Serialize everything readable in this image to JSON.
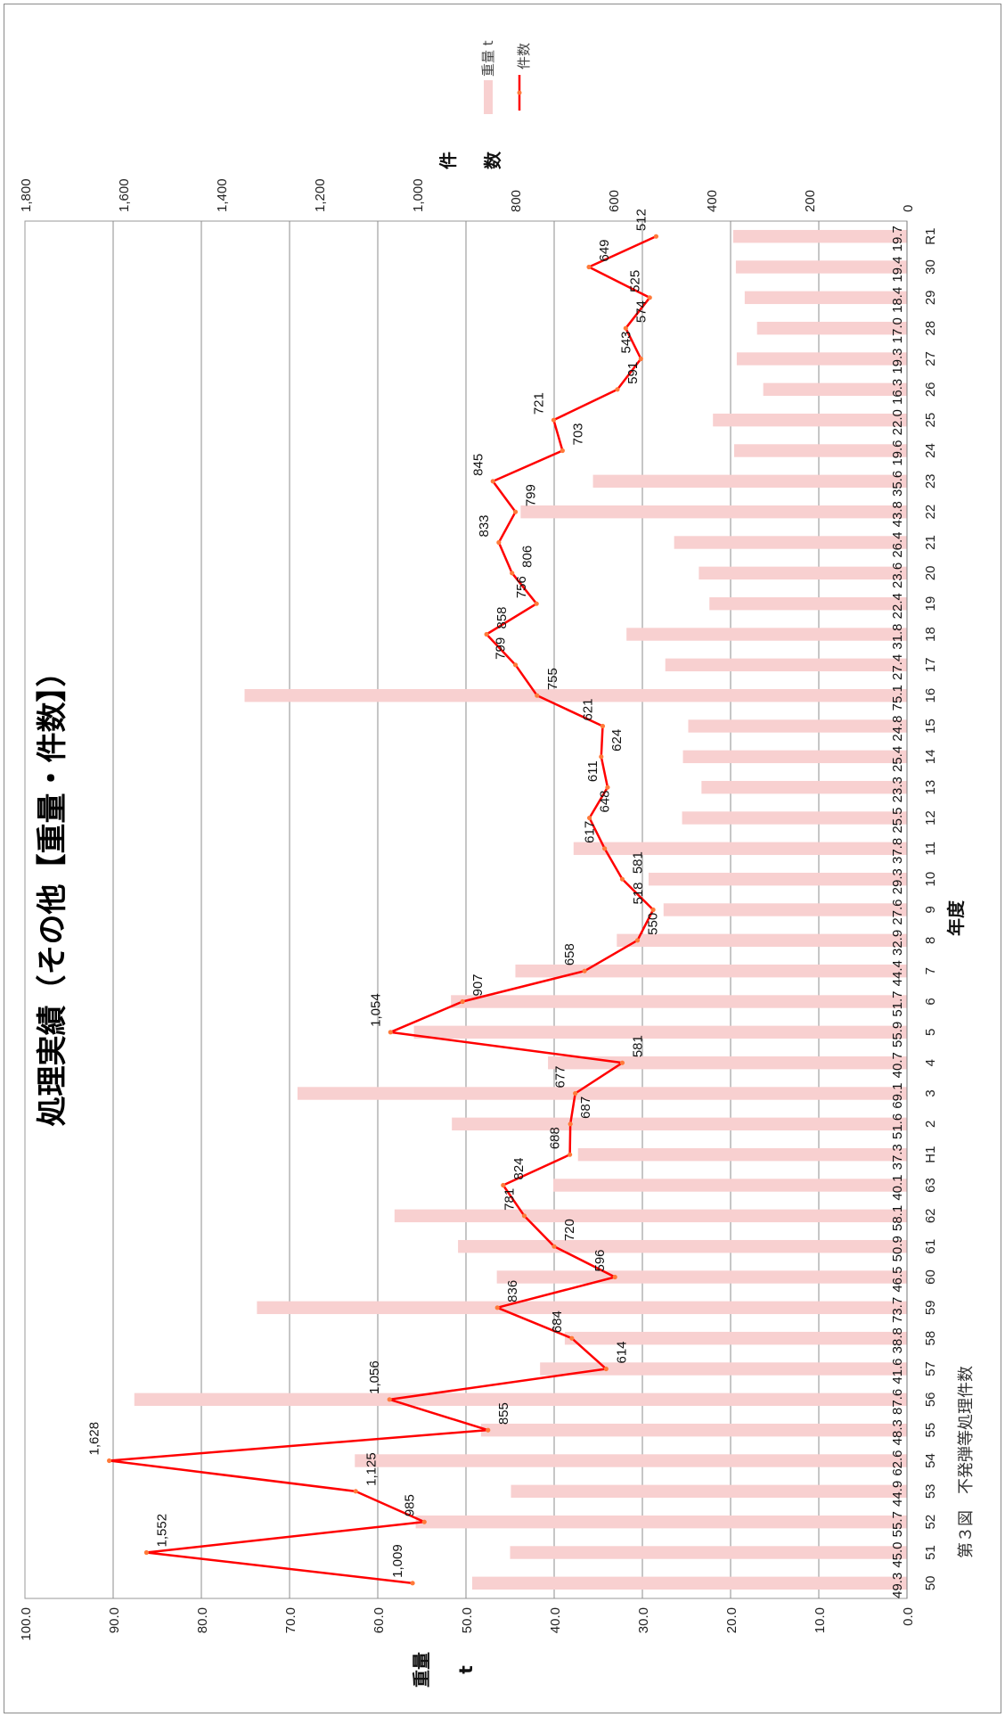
{
  "caption": "第３図　不発弾等処理件数",
  "chart_data": {
    "type": "bar",
    "title": "処理実績（その他【重量・件数】）",
    "xlabel": "年度",
    "ylabel": "重量",
    "ylabel_unit": "t",
    "y2label_1": "件",
    "y2label_2": "数",
    "ylim": [
      0,
      100
    ],
    "y2lim": [
      0,
      1800
    ],
    "y_ticks": [
      "0.0",
      "10.0",
      "20.0",
      "30.0",
      "40.0",
      "50.0",
      "60.0",
      "70.0",
      "80.0",
      "90.0",
      "100.0"
    ],
    "y2_ticks": [
      "0",
      "200",
      "400",
      "600",
      "800",
      "1,000",
      "1,200",
      "1,400",
      "1,600",
      "1,800"
    ],
    "grid": true,
    "legend_position": "top-right",
    "categories": [
      "50",
      "51",
      "52",
      "53",
      "54",
      "55",
      "56",
      "57",
      "58",
      "59",
      "60",
      "61",
      "62",
      "63",
      "H1",
      "2",
      "3",
      "4",
      "5",
      "6",
      "7",
      "8",
      "9",
      "10",
      "11",
      "12",
      "13",
      "14",
      "15",
      "16",
      "17",
      "18",
      "19",
      "20",
      "21",
      "22",
      "23",
      "24",
      "25",
      "26",
      "27",
      "28",
      "29",
      "30",
      "R1"
    ],
    "series": [
      {
        "name": "重量 t",
        "type": "bar",
        "color": "#f8d0d0",
        "values": [
          49.3,
          45.0,
          55.7,
          44.9,
          62.6,
          48.3,
          87.6,
          41.6,
          38.8,
          73.7,
          46.5,
          50.9,
          58.1,
          40.1,
          37.3,
          51.6,
          69.1,
          40.7,
          55.9,
          51.7,
          44.4,
          32.9,
          27.6,
          29.3,
          37.8,
          25.5,
          23.3,
          25.4,
          24.8,
          75.1,
          27.4,
          31.8,
          22.4,
          23.6,
          26.4,
          43.8,
          35.6,
          19.6,
          22.0,
          16.3,
          19.3,
          17.0,
          18.4,
          19.4,
          19.7
        ],
        "labels": [
          "49.3",
          "45.0",
          "55.7",
          "44.9",
          "62.6",
          "48.3",
          "87.6",
          "41.6",
          "38.8",
          "73.7",
          "46.5",
          "50.9",
          "58.1",
          "40.1",
          "37.3",
          "51.6",
          "69.1",
          "40.7",
          "55.9",
          "51.7",
          "44.4",
          "32.9",
          "27.6",
          "29.3",
          "37.8",
          "25.5",
          "23.3",
          "25.4",
          "24.8",
          "75.1",
          "27.4",
          "31.8",
          "22.4",
          "23.6",
          "26.4",
          "43.8",
          "35.6",
          "19.6",
          "22.0",
          "16.3",
          "19.3",
          "17.0",
          "18.4",
          "19.4",
          "19.7"
        ]
      },
      {
        "name": "件数",
        "type": "line",
        "color": "#ff0000",
        "values": [
          1009,
          1552,
          985,
          1125,
          1628,
          855,
          1056,
          614,
          684,
          836,
          596,
          720,
          781,
          824,
          688,
          687,
          677,
          581,
          1054,
          907,
          658,
          550,
          518,
          581,
          617,
          648,
          611,
          624,
          621,
          755,
          799,
          858,
          756,
          806,
          833,
          799,
          845,
          703,
          721,
          591,
          543,
          574,
          525,
          649,
          512
        ],
        "labels": [
          "1,009",
          "1,552",
          "985",
          "1,125",
          "1,628",
          "855",
          "1,056",
          "614",
          "684",
          "836",
          "596",
          "720",
          "781",
          "824",
          "688",
          "687",
          "677",
          "581",
          "1,054",
          "907",
          "658",
          "550",
          "518",
          "581",
          "617",
          "648",
          "611",
          "624",
          "621",
          "755",
          "799",
          "858",
          "756",
          "806",
          "833",
          "799",
          "845",
          "703",
          "721",
          "591",
          "543",
          "574",
          "525",
          "649",
          "512"
        ]
      }
    ]
  }
}
